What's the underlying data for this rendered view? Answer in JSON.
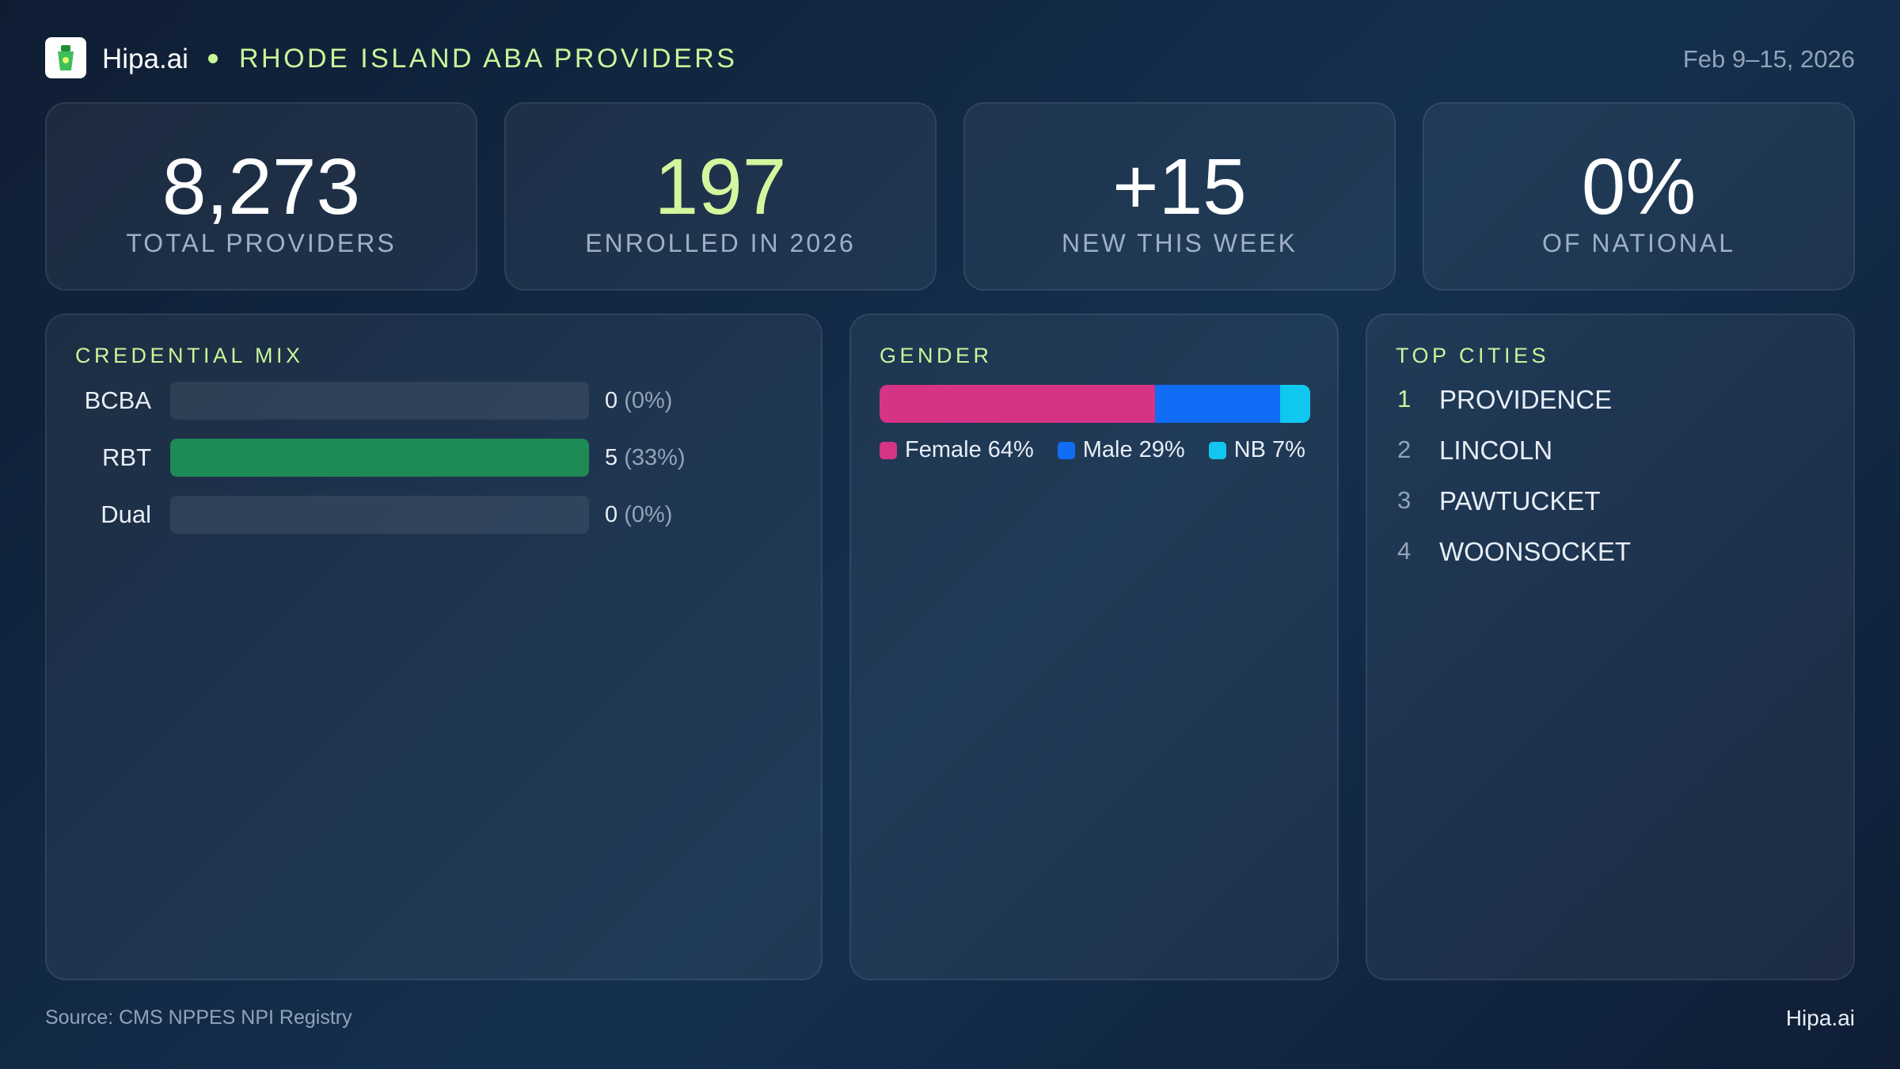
{
  "header": {
    "brand": "Hipa.ai",
    "title": "RHODE ISLAND ABA PROVIDERS",
    "date": "Feb 9–15, 2026"
  },
  "kpis": [
    {
      "value": "8,273",
      "label": "TOTAL PROVIDERS",
      "highlight": false
    },
    {
      "value": "197",
      "label": "ENROLLED IN 2026",
      "highlight": true
    },
    {
      "value": "+15",
      "label": "NEW THIS WEEK",
      "highlight": false
    },
    {
      "value": "0%",
      "label": "OF NATIONAL",
      "highlight": false
    }
  ],
  "credential_mix": {
    "title": "CREDENTIAL MIX",
    "color": "#1e8a55",
    "rows": [
      {
        "label": "BCBA",
        "value": 0,
        "share": "(0%)"
      },
      {
        "label": "RBT",
        "value": 5,
        "share": "(33%)"
      },
      {
        "label": "Dual",
        "value": 0,
        "share": "(0%)"
      }
    ]
  },
  "gender": {
    "title": "GENDER",
    "segments": [
      {
        "name": "Female",
        "value": 64,
        "label": "64%",
        "color": "#d63384"
      },
      {
        "name": "Male",
        "value": 29,
        "label": "29%",
        "color": "#116cf6"
      },
      {
        "name": "NB",
        "value": 7,
        "label": "7%",
        "color": "#10c8ef"
      }
    ]
  },
  "top_cities": {
    "title": "TOP CITIES",
    "rows": [
      {
        "rank": "1",
        "name": "PROVIDENCE"
      },
      {
        "rank": "2",
        "name": "LINCOLN"
      },
      {
        "rank": "3",
        "name": "PAWTUCKET"
      },
      {
        "rank": "4",
        "name": "WOONSOCKET"
      }
    ]
  },
  "footer": {
    "source": "Source: CMS NPPES NPI Registry",
    "brand": "Hipa.ai"
  }
}
